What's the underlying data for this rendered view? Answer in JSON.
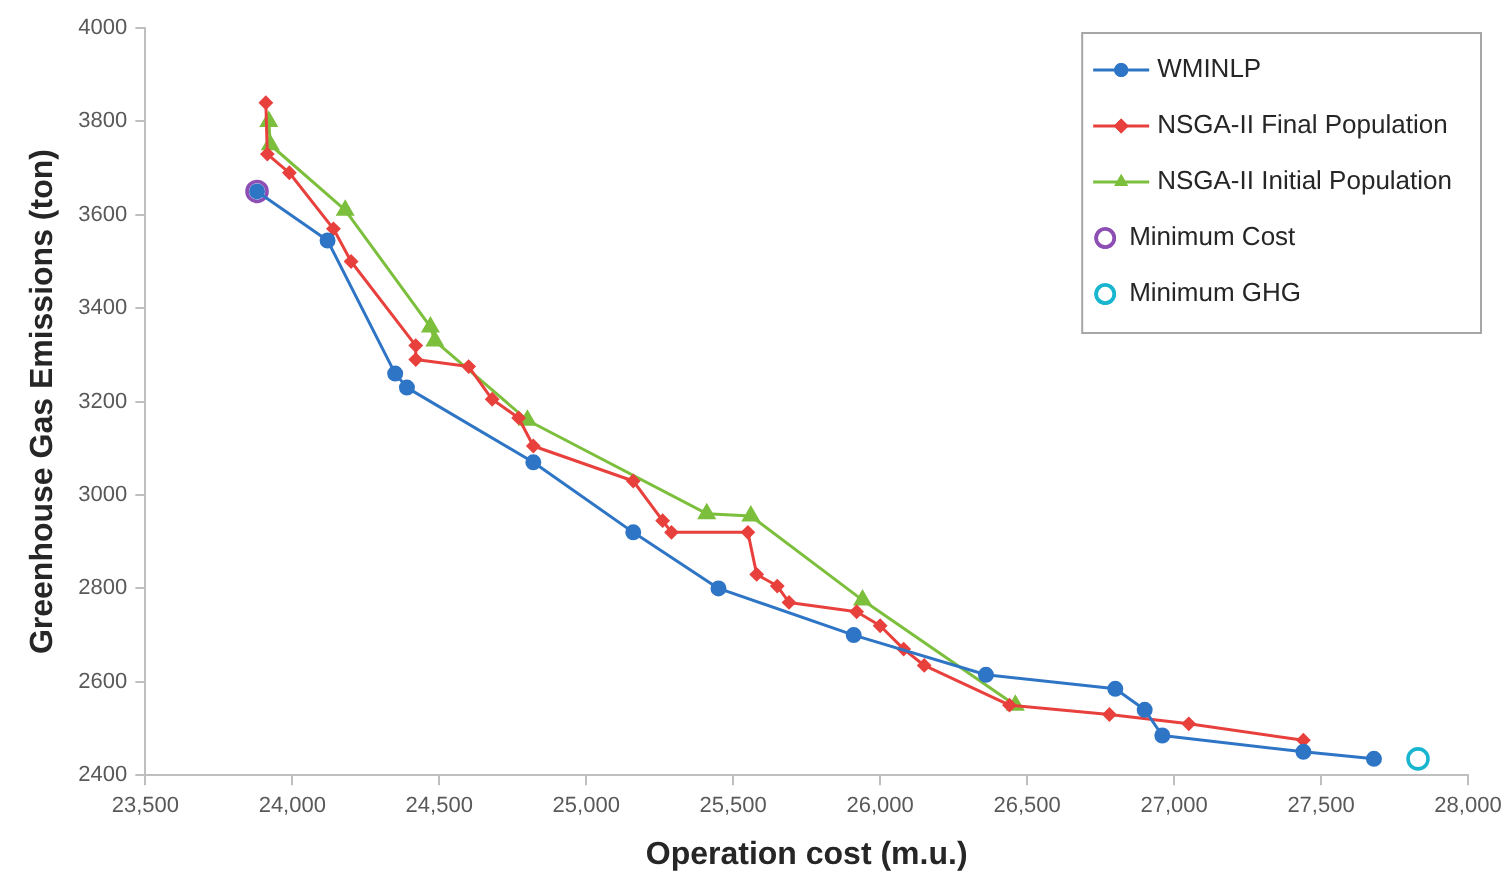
{
  "chart_data": {
    "type": "line",
    "xlabel": "Operation cost (m.u.)",
    "ylabel": "Greenhouse Gas Emissions (ton)",
    "xlim": [
      23500,
      28000
    ],
    "xticks": [
      {
        "value": 23500,
        "label": "23,500"
      },
      {
        "value": 24000,
        "label": "24,000"
      },
      {
        "value": 24500,
        "label": "24,500"
      },
      {
        "value": 25000,
        "label": "25,000"
      },
      {
        "value": 25500,
        "label": "25,500"
      },
      {
        "value": 26000,
        "label": "26,000"
      },
      {
        "value": 26500,
        "label": "26,500"
      },
      {
        "value": 27000,
        "label": "27,000"
      },
      {
        "value": 27500,
        "label": "27,500"
      },
      {
        "value": 28000,
        "label": "28,000"
      }
    ],
    "ylim": [
      2400,
      4000
    ],
    "yticks": [
      2400,
      2600,
      2800,
      3000,
      3200,
      3400,
      3600,
      3800,
      4000
    ],
    "grid": false,
    "legend": "top right",
    "series": [
      {
        "name": "WMINLP",
        "type": "line",
        "marker": "circle",
        "color": "#2e75c6",
        "x": [
          23880,
          24120,
          24350,
          24390,
          24820,
          25160,
          25450,
          25910,
          26360,
          26800,
          26900,
          26960,
          27440,
          27680
        ],
        "values": [
          3650,
          3545,
          3260,
          3230,
          3070,
          2920,
          2800,
          2700,
          2615,
          2585,
          2540,
          2485,
          2450,
          2435
        ]
      },
      {
        "name": "NSGA-II Final Population",
        "type": "line",
        "marker": "diamond",
        "color": "#e8403c",
        "x": [
          23910,
          23915,
          23990,
          24140,
          24200,
          24420,
          24420,
          24600,
          24680,
          24770,
          24820,
          25160,
          25260,
          25290,
          25550,
          25580,
          25650,
          25690,
          25920,
          26000,
          26080,
          26150,
          26440,
          26780,
          27050,
          27440,
          27440
        ],
        "values": [
          3840,
          3730,
          3690,
          3570,
          3500,
          3320,
          3290,
          3275,
          3205,
          3165,
          3105,
          3030,
          2945,
          2920,
          2920,
          2830,
          2805,
          2770,
          2750,
          2720,
          2670,
          2635,
          2550,
          2530,
          2510,
          2475,
          2455
        ]
      },
      {
        "name": "NSGA-II Initial Population",
        "type": "line",
        "marker": "triangle",
        "color": "#7cbf3c",
        "x": [
          23920,
          23925,
          24180,
          24470,
          24485,
          24800,
          25410,
          25560,
          25940,
          26460
        ],
        "values": [
          3800,
          3750,
          3610,
          3360,
          3330,
          3160,
          2960,
          2955,
          2775,
          2550
        ]
      },
      {
        "name": "Minimum Cost",
        "type": "scatter",
        "marker": "circle",
        "color": "#8e4fb5",
        "x": [
          23880
        ],
        "values": [
          3650
        ]
      },
      {
        "name": "Minimum GHG",
        "type": "scatter",
        "marker": "circle",
        "color": "#18b5cf",
        "x": [
          27830
        ],
        "values": [
          2435
        ]
      }
    ]
  }
}
